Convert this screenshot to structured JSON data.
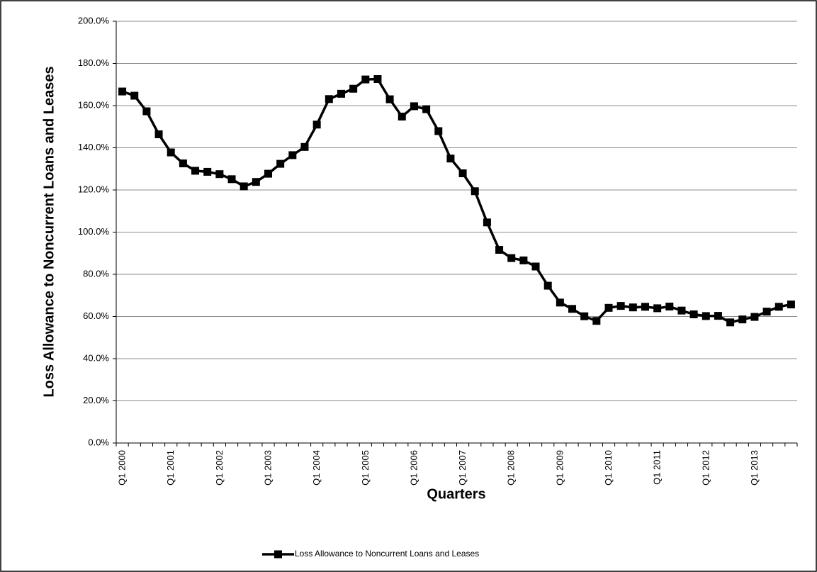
{
  "chart_data": {
    "type": "line",
    "y_label": "Loss Allowance to Noncurrent Loans and Leases",
    "x_label": "Quarters",
    "categories": [
      "Q1 2000",
      null,
      null,
      null,
      "Q1 2001",
      null,
      null,
      null,
      "Q1 2002",
      null,
      null,
      null,
      "Q1 2003",
      null,
      null,
      null,
      "Q1 2004",
      null,
      null,
      null,
      "Q1 2005",
      null,
      null,
      null,
      "Q1 2006",
      null,
      null,
      null,
      "Q1 2007",
      null,
      null,
      null,
      "Q1 2008",
      null,
      null,
      null,
      "Q1 2009",
      null,
      null,
      null,
      "Q1 2010",
      null,
      null,
      null,
      "Q1 2011",
      null,
      null,
      null,
      "Q1 2012",
      null,
      null,
      null,
      "Q1 2013",
      null,
      null,
      null
    ],
    "series": [
      {
        "name": "Loss Allowance to Noncurrent Loans and Leases",
        "color": "#000000",
        "values": [
          166.7,
          164.7,
          157.3,
          146.4,
          137.8,
          132.6,
          129.1,
          128.6,
          127.5,
          125.1,
          121.7,
          123.8,
          127.7,
          132.4,
          136.5,
          140.4,
          151.0,
          163.1,
          165.6,
          168.0,
          172.4,
          172.6,
          163.0,
          154.8,
          159.7,
          158.3,
          147.9,
          134.9,
          127.9,
          119.4,
          104.6,
          91.6,
          87.7,
          86.6,
          83.7,
          74.6,
          66.6,
          63.6,
          60.1,
          57.9,
          64.1,
          65.0,
          64.3,
          64.6,
          63.9,
          64.7,
          62.8,
          61.0,
          60.2,
          60.3,
          57.2,
          58.6,
          59.8,
          62.3,
          64.6,
          65.7
        ]
      }
    ],
    "ylim": [
      0,
      200
    ],
    "yticks": [
      {
        "value": 0,
        "label": "0.0%"
      },
      {
        "value": 20,
        "label": "20.0%"
      },
      {
        "value": 40,
        "label": "40.0%"
      },
      {
        "value": 60,
        "label": "60.0%"
      },
      {
        "value": 80,
        "label": "80.0%"
      },
      {
        "value": 100,
        "label": "100.0%"
      },
      {
        "value": 120,
        "label": "120.0%"
      },
      {
        "value": 140,
        "label": "140.0%"
      },
      {
        "value": 160,
        "label": "160.0%"
      },
      {
        "value": 180,
        "label": "180.0%"
      },
      {
        "value": 200,
        "label": "200.0%"
      }
    ],
    "grid": true,
    "legend": "bottom"
  }
}
